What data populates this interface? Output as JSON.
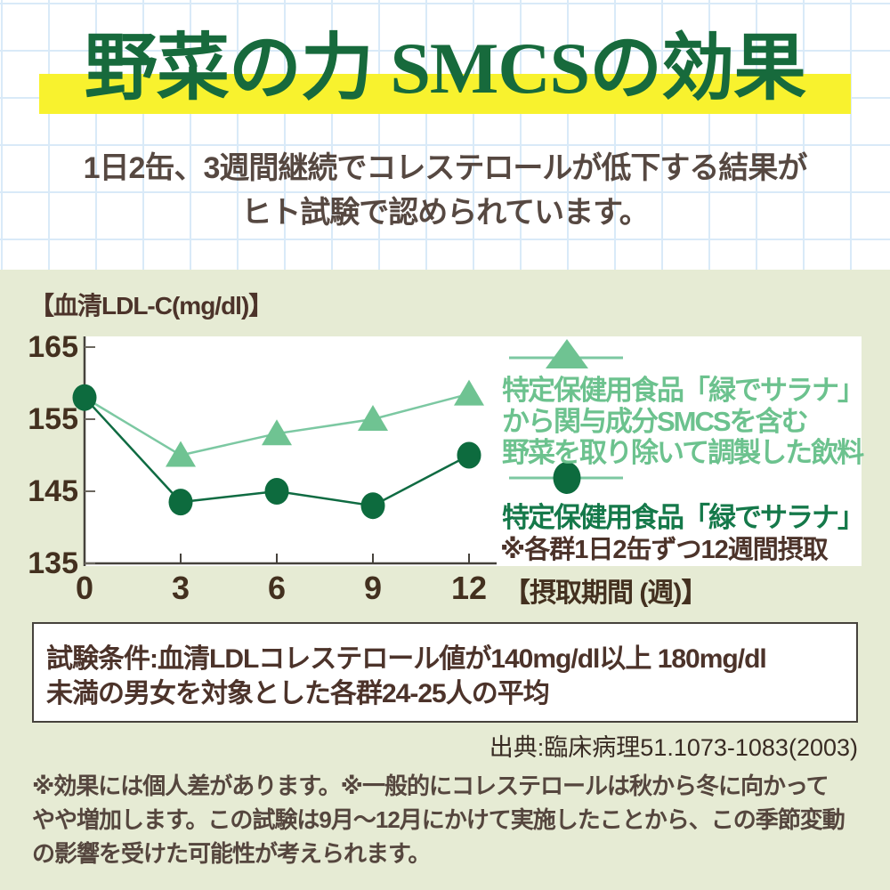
{
  "page": {
    "title": "野菜の力 SMCSの効果",
    "subtitle_line1": "1日2缶、3週間継続でコレステロールが低下する結果が",
    "subtitle_line2": "ヒト試験で認められています。"
  },
  "chart_data": {
    "type": "line",
    "title": "",
    "ylabel": "【血清LDL-C(mg/dl)】",
    "xlabel": "【摂取期間 (週)】",
    "x": [
      0,
      3,
      6,
      9,
      12
    ],
    "xticks": [
      0,
      3,
      6,
      9,
      12
    ],
    "yticks": [
      165,
      155,
      145,
      135
    ],
    "ylim": [
      135,
      165
    ],
    "grid": false,
    "legend_position": "right-inside",
    "series": [
      {
        "name": "特定保健用食品「緑でサラナ」から関与成分SMCSを含む野菜を取り除いて調製した飲料",
        "marker": "triangle",
        "marker_color": "#6fc392",
        "line_color": "#7cc8a2",
        "values": [
          158,
          150,
          153,
          155,
          158.5
        ],
        "marker_weeks": [
          3,
          6,
          9,
          12
        ]
      },
      {
        "name": "特定保健用食品「緑でサラナ」",
        "marker": "circle",
        "marker_color": "#0d6b3e",
        "line_color": "#0f6b42",
        "values": [
          158,
          143.5,
          145,
          143,
          150
        ],
        "marker_weeks": [
          0,
          3,
          6,
          9,
          12
        ]
      }
    ],
    "legend": {
      "triangle_label_line1": "特定保健用食品「緑でサラナ」",
      "triangle_label_line2": "から関与成分SMCSを含む",
      "triangle_label_line3": "野菜を取り除いて調製した飲料",
      "circle_label": "特定保健用食品「緑でサラナ」",
      "note": "※各群1日2缶ずつ12週間摂取"
    }
  },
  "condition_box": {
    "line1": "試験条件:血清LDLコレステロール値が140mg/dl以上 180mg/dl",
    "line2": "未満の男女を対象とした各群24-25人の平均"
  },
  "source": "出典:臨床病理51.1073-1083(2003)",
  "footer": {
    "line1": "※効果には個人差があります。※一般的にコレステロールは秋から冬に向かって",
    "line2": "やや増加します。この試験は9月～12月にかけて実施したことから、この季節変動",
    "line3": "の影響を受けた可能性が考えられます。"
  },
  "colors": {
    "olive_background": "#e6ebd4",
    "grid_line_blue": "#d9eaf8",
    "title_green": "#176a3c",
    "title_highlight_yellow": "#f8f22e",
    "light_green_series": "#6fc392",
    "dark_green_series": "#0d6b3e",
    "dark_brown_text": "#4c332a",
    "subtitle_brown": "#564841",
    "axis_line": "#46423c"
  }
}
